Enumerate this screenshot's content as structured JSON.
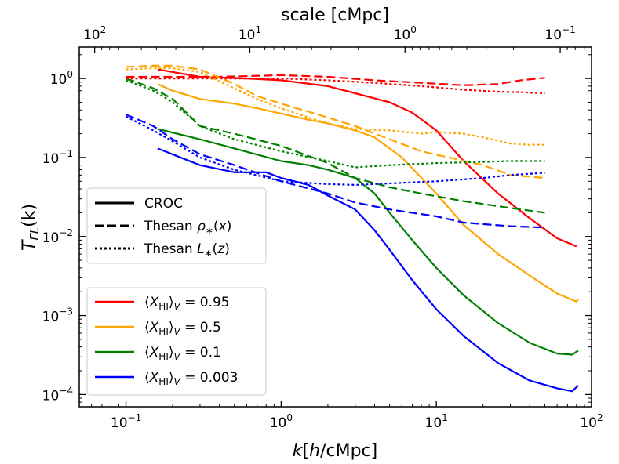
{
  "chart_data": {
    "type": "line",
    "xscale": "log",
    "yscale": "log",
    "xlim": [
      0.05,
      100
    ],
    "ylim": [
      7e-05,
      2.5
    ],
    "xlabel_parts": [
      "k",
      "[",
      "h",
      "/cMpc]"
    ],
    "ylabel_parts": [
      "T",
      "ΓL",
      "(k)"
    ],
    "top_label": "scale [cMpc]",
    "top_ticks": [
      {
        "exp": "2",
        "value": 100
      },
      {
        "exp": "1",
        "value": 10
      },
      {
        "exp": "0",
        "value": 1
      },
      {
        "exp": "−1",
        "value": 0.1
      }
    ],
    "x_ticks": [
      {
        "exp": "−1",
        "value": 0.1
      },
      {
        "exp": "0",
        "value": 1
      },
      {
        "exp": "1",
        "value": 10
      },
      {
        "exp": "2",
        "value": 100
      }
    ],
    "y_ticks": [
      {
        "exp": "−4",
        "value": 0.0001
      },
      {
        "exp": "−3",
        "value": 0.001
      },
      {
        "exp": "−2",
        "value": 0.01
      },
      {
        "exp": "−1",
        "value": 0.1
      },
      {
        "exp": "0",
        "value": 1
      }
    ],
    "tick_base": "10",
    "colors": {
      "0.95": "#ff0000",
      "0.5": "#ffa500",
      "0.1": "#008000",
      "0.003": "#0000ff"
    },
    "style_legend": [
      {
        "label": "CROC",
        "style": "solid"
      },
      {
        "label_parts": [
          "Thesan ",
          "ρ",
          "∗",
          "(",
          "x",
          ")"
        ],
        "style": "dashed"
      },
      {
        "label_parts": [
          "Thesan ",
          "L",
          "∗",
          "(",
          "z",
          ")"
        ],
        "style": "dotted"
      }
    ],
    "color_legend": [
      {
        "value": "0.95",
        "color": "#ff0000"
      },
      {
        "value": "0.5",
        "color": "#ffa500"
      },
      {
        "value": "0.1",
        "color": "#008000"
      },
      {
        "value": "0.003",
        "color": "#0000ff"
      }
    ],
    "color_legend_text": {
      "open": "⟨",
      "X": "X",
      "sub": "HI",
      "close": "⟩",
      "V": "V",
      "eq": " = "
    },
    "series": [
      {
        "name": "CROC 0.95",
        "color": "#ff0000",
        "style": "solid",
        "x": [
          0.16,
          0.3,
          0.6,
          1.0,
          2.0,
          3.0,
          5.0,
          7.0,
          10,
          15,
          25,
          40,
          60,
          80
        ],
        "y": [
          1.3,
          1.05,
          1.0,
          0.95,
          0.8,
          0.65,
          0.5,
          0.37,
          0.22,
          0.09,
          0.035,
          0.017,
          0.0095,
          0.0075
        ]
      },
      {
        "name": "CROC 0.5",
        "color": "#ffa500",
        "style": "solid",
        "x": [
          0.16,
          0.2,
          0.3,
          0.5,
          0.7,
          1.0,
          1.5,
          2.0,
          3.0,
          4.0,
          6.0,
          10,
          15,
          25,
          40,
          60,
          80,
          82
        ],
        "y": [
          0.85,
          0.7,
          0.55,
          0.48,
          0.42,
          0.36,
          0.3,
          0.27,
          0.22,
          0.18,
          0.1,
          0.035,
          0.014,
          0.006,
          0.0032,
          0.0019,
          0.0015,
          0.0016
        ]
      },
      {
        "name": "CROC 0.1",
        "color": "#008000",
        "style": "solid",
        "x": [
          0.16,
          0.3,
          0.5,
          1.0,
          1.5,
          2.0,
          3.0,
          4.0,
          5.0,
          7.0,
          10,
          15,
          25,
          40,
          60,
          75,
          82
        ],
        "y": [
          0.23,
          0.17,
          0.13,
          0.09,
          0.08,
          0.07,
          0.055,
          0.035,
          0.02,
          0.009,
          0.004,
          0.0018,
          0.0008,
          0.00045,
          0.00033,
          0.00032,
          0.00036
        ]
      },
      {
        "name": "CROC 0.003",
        "color": "#0000ff",
        "style": "solid",
        "x": [
          0.16,
          0.3,
          0.5,
          0.8,
          1.0,
          1.5,
          2.0,
          3.0,
          4.0,
          5.0,
          7.0,
          10,
          15,
          25,
          40,
          60,
          75,
          82
        ],
        "y": [
          0.13,
          0.08,
          0.065,
          0.065,
          0.055,
          0.045,
          0.033,
          0.022,
          0.012,
          0.0068,
          0.0028,
          0.0012,
          0.00055,
          0.00025,
          0.00015,
          0.00012,
          0.00011,
          0.00013
        ]
      },
      {
        "name": "Thesan rho 0.95",
        "color": "#ff0000",
        "style": "dashed",
        "x": [
          0.1,
          0.2,
          0.4,
          1.0,
          2.0,
          4.0,
          8.0,
          15,
          25,
          35,
          50
        ],
        "y": [
          1.05,
          1.05,
          1.05,
          1.1,
          1.05,
          0.95,
          0.88,
          0.82,
          0.85,
          0.95,
          1.02
        ]
      },
      {
        "name": "Thesan rho 0.5",
        "color": "#ffa500",
        "style": "dashed",
        "x": [
          0.1,
          0.15,
          0.2,
          0.3,
          0.5,
          0.7,
          1.0,
          1.5,
          2.0,
          3.0,
          5.0,
          8.0,
          12,
          20,
          30,
          50
        ],
        "y": [
          1.4,
          1.45,
          1.45,
          1.3,
          0.85,
          0.6,
          0.48,
          0.38,
          0.32,
          0.25,
          0.17,
          0.12,
          0.1,
          0.08,
          0.06,
          0.055
        ]
      },
      {
        "name": "Thesan rho 0.1",
        "color": "#008000",
        "style": "dashed",
        "x": [
          0.1,
          0.15,
          0.2,
          0.3,
          0.5,
          1.0,
          2.0,
          3.0,
          5.0,
          8.0,
          15,
          30,
          50
        ],
        "y": [
          1.0,
          0.75,
          0.55,
          0.25,
          0.2,
          0.14,
          0.085,
          0.055,
          0.042,
          0.035,
          0.028,
          0.023,
          0.02
        ]
      },
      {
        "name": "Thesan rho 0.003",
        "color": "#0000ff",
        "style": "dashed",
        "x": [
          0.1,
          0.15,
          0.2,
          0.3,
          0.5,
          1.0,
          2.0,
          3.0,
          5.0,
          10,
          15,
          30,
          50
        ],
        "y": [
          0.35,
          0.25,
          0.17,
          0.11,
          0.08,
          0.05,
          0.035,
          0.027,
          0.022,
          0.018,
          0.015,
          0.0135,
          0.013
        ]
      },
      {
        "name": "Thesan L 0.95",
        "color": "#ff0000",
        "style": "dotted",
        "x": [
          0.1,
          0.2,
          0.4,
          1.0,
          2.0,
          4.0,
          8.0,
          15,
          25,
          35,
          50
        ],
        "y": [
          1.0,
          1.0,
          1.0,
          1.0,
          0.95,
          0.88,
          0.8,
          0.72,
          0.68,
          0.67,
          0.65
        ]
      },
      {
        "name": "Thesan L 0.5",
        "color": "#ffa500",
        "style": "dotted",
        "x": [
          0.1,
          0.15,
          0.2,
          0.3,
          0.5,
          0.7,
          1.0,
          1.5,
          2.0,
          3.0,
          5.0,
          8.0,
          10,
          15,
          20,
          30,
          40,
          50
        ],
        "y": [
          1.3,
          1.35,
          1.35,
          1.2,
          0.75,
          0.55,
          0.42,
          0.32,
          0.27,
          0.23,
          0.22,
          0.2,
          0.21,
          0.2,
          0.18,
          0.15,
          0.145,
          0.145
        ]
      },
      {
        "name": "Thesan L 0.1",
        "color": "#008000",
        "style": "dotted",
        "x": [
          0.1,
          0.15,
          0.2,
          0.3,
          0.5,
          1.0,
          2.0,
          3.0,
          5.0,
          10,
          20,
          30,
          50
        ],
        "y": [
          0.95,
          0.7,
          0.5,
          0.25,
          0.17,
          0.12,
          0.09,
          0.075,
          0.08,
          0.085,
          0.088,
          0.09,
          0.09
        ]
      },
      {
        "name": "Thesan L 0.003",
        "color": "#0000ff",
        "style": "dotted",
        "x": [
          0.1,
          0.15,
          0.2,
          0.3,
          0.5,
          1.0,
          2.0,
          3.0,
          5.0,
          10,
          20,
          30,
          50
        ],
        "y": [
          0.33,
          0.22,
          0.16,
          0.1,
          0.07,
          0.05,
          0.046,
          0.045,
          0.047,
          0.05,
          0.055,
          0.06,
          0.064
        ]
      }
    ]
  }
}
